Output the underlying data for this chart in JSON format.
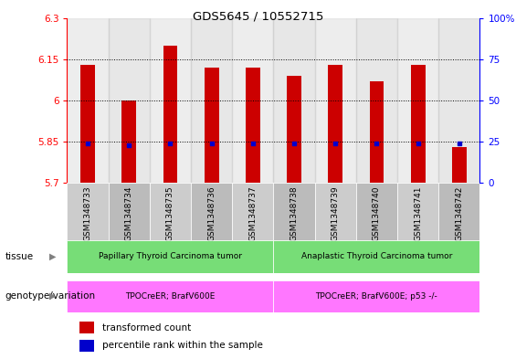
{
  "title": "GDS5645 / 10552715",
  "samples": [
    "GSM1348733",
    "GSM1348734",
    "GSM1348735",
    "GSM1348736",
    "GSM1348737",
    "GSM1348738",
    "GSM1348739",
    "GSM1348740",
    "GSM1348741",
    "GSM1348742"
  ],
  "transformed_count": [
    6.13,
    6.0,
    6.2,
    6.12,
    6.12,
    6.09,
    6.13,
    6.07,
    6.13,
    5.83
  ],
  "percentile_rank": [
    24,
    23,
    24,
    24,
    24,
    24,
    24,
    24,
    24,
    24
  ],
  "ylim_left": [
    5.7,
    6.3
  ],
  "ylim_right": [
    0,
    100
  ],
  "yticks_left": [
    5.7,
    5.85,
    6.0,
    6.15,
    6.3
  ],
  "yticks_right": [
    0,
    25,
    50,
    75,
    100
  ],
  "ytick_labels_left": [
    "5.7",
    "5.85",
    "6",
    "6.15",
    "6.3"
  ],
  "ytick_labels_right": [
    "0",
    "25",
    "50",
    "75",
    "100%"
  ],
  "hlines": [
    5.85,
    6.0,
    6.15
  ],
  "tissue_groups": [
    {
      "label": "Papillary Thyroid Carcinoma tumor",
      "start": 0,
      "end": 5,
      "color": "#77DD77"
    },
    {
      "label": "Anaplastic Thyroid Carcinoma tumor",
      "start": 5,
      "end": 10,
      "color": "#77DD77"
    }
  ],
  "genotype_groups": [
    {
      "label": "TPOCreER; BrafV600E",
      "start": 0,
      "end": 5,
      "color": "#FF77FF"
    },
    {
      "label": "TPOCreER; BrafV600E; p53 -/-",
      "start": 5,
      "end": 10,
      "color": "#FF77FF"
    }
  ],
  "tissue_label": "tissue",
  "genotype_label": "genotype/variation",
  "bar_color": "#CC0000",
  "percentile_color": "#0000CC",
  "bar_width": 0.35,
  "plot_bg_color": "#FFFFFF",
  "col_colors": [
    "#CCCCCC",
    "#AAAAAA"
  ],
  "legend_items": [
    {
      "label": "transformed count",
      "color": "#CC0000"
    },
    {
      "label": "percentile rank within the sample",
      "color": "#0000CC"
    }
  ]
}
